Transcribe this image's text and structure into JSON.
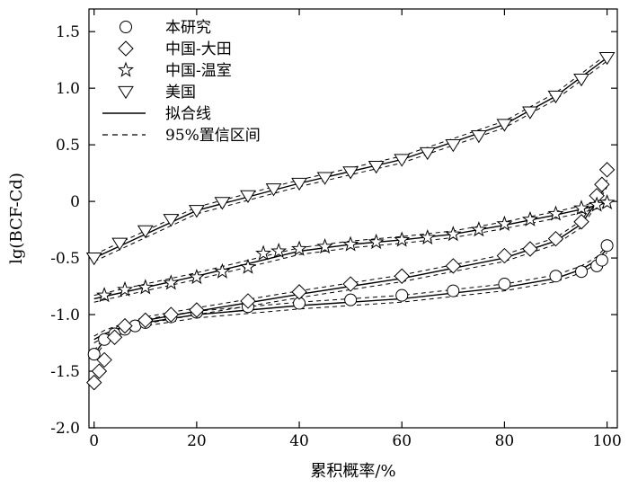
{
  "chart_data": {
    "type": "scatter",
    "xlabel": "累积概率/%",
    "ylabel": "lg(BCF-Cd)",
    "xlim": [
      -1,
      102
    ],
    "ylim": [
      -2.0,
      1.7
    ],
    "xticks": [
      0,
      20,
      40,
      60,
      80,
      100
    ],
    "yticks": [
      -2.0,
      -1.5,
      -1.0,
      -0.5,
      0,
      0.5,
      1.0,
      1.5
    ],
    "ytick_labels": [
      "-2.0",
      "-1.5",
      "-1.0",
      "-0.5",
      "0",
      "0.5",
      "1.0",
      "1.5"
    ],
    "legend_position": "top-left",
    "series": [
      {
        "name": "本研究",
        "marker": "circle",
        "x": [
          0,
          2,
          4,
          6,
          8,
          10,
          15,
          20,
          30,
          40,
          50,
          60,
          70,
          80,
          90,
          95,
          98,
          99,
          100
        ],
        "y": [
          -1.35,
          -1.22,
          -1.17,
          -1.13,
          -1.1,
          -1.07,
          -1.02,
          -0.98,
          -0.93,
          -0.9,
          -0.87,
          -0.83,
          -0.79,
          -0.73,
          -0.66,
          -0.62,
          -0.57,
          -0.52,
          -0.39
        ]
      },
      {
        "name": "中国-大田",
        "marker": "diamond",
        "x": [
          0,
          1,
          2,
          4,
          6,
          10,
          15,
          20,
          30,
          40,
          50,
          60,
          70,
          80,
          85,
          90,
          95,
          98,
          99,
          100
        ],
        "y": [
          -1.6,
          -1.5,
          -1.4,
          -1.2,
          -1.1,
          -1.05,
          -1.0,
          -0.96,
          -0.88,
          -0.8,
          -0.73,
          -0.66,
          -0.57,
          -0.48,
          -0.42,
          -0.33,
          -0.18,
          0.05,
          0.15,
          0.28
        ]
      },
      {
        "name": "中国-温室",
        "marker": "star",
        "x": [
          2,
          6,
          10,
          15,
          20,
          25,
          30,
          33,
          36,
          40,
          45,
          50,
          55,
          60,
          65,
          70,
          75,
          80,
          85,
          90,
          95,
          98,
          100
        ],
        "y": [
          -0.83,
          -0.78,
          -0.76,
          -0.72,
          -0.67,
          -0.62,
          -0.58,
          -0.46,
          -0.44,
          -0.42,
          -0.4,
          -0.38,
          -0.36,
          -0.34,
          -0.32,
          -0.29,
          -0.25,
          -0.2,
          -0.16,
          -0.11,
          -0.06,
          -0.03,
          -0.01
        ]
      },
      {
        "name": "美国",
        "marker": "triangle-down",
        "x": [
          0,
          5,
          10,
          15,
          20,
          25,
          30,
          35,
          40,
          45,
          50,
          55,
          60,
          65,
          70,
          75,
          80,
          85,
          90,
          95,
          100
        ],
        "y": [
          -0.5,
          -0.37,
          -0.26,
          -0.16,
          -0.08,
          -0.01,
          0.05,
          0.11,
          0.16,
          0.21,
          0.26,
          0.31,
          0.37,
          0.43,
          0.5,
          0.58,
          0.68,
          0.79,
          0.93,
          1.08,
          1.27
        ]
      }
    ],
    "fit_lines": [
      {
        "x": [
          0,
          2,
          5,
          10,
          20,
          40,
          60,
          80,
          90,
          95,
          98,
          100
        ],
        "y": [
          -1.22,
          -1.17,
          -1.12,
          -1.07,
          -1.0,
          -0.92,
          -0.86,
          -0.76,
          -0.68,
          -0.6,
          -0.52,
          -0.42
        ]
      },
      {
        "x": [
          0,
          2,
          5,
          10,
          20,
          40,
          60,
          80,
          90,
          95,
          98,
          100
        ],
        "y": [
          -1.35,
          -1.23,
          -1.12,
          -1.05,
          -0.97,
          -0.82,
          -0.68,
          -0.5,
          -0.35,
          -0.2,
          0.0,
          0.16
        ]
      },
      {
        "x": [
          0,
          10,
          20,
          30,
          40,
          50,
          60,
          70,
          80,
          90,
          95,
          100
        ],
        "y": [
          -0.86,
          -0.76,
          -0.66,
          -0.55,
          -0.44,
          -0.38,
          -0.34,
          -0.29,
          -0.21,
          -0.12,
          -0.07,
          -0.01
        ]
      },
      {
        "x": [
          0,
          20,
          40,
          60,
          80,
          90,
          100
        ],
        "y": [
          -0.5,
          -0.08,
          0.16,
          0.37,
          0.68,
          0.93,
          1.27
        ]
      }
    ],
    "legend": [
      {
        "label": "本研究",
        "symbol": "circle"
      },
      {
        "label": "中国-大田",
        "symbol": "diamond"
      },
      {
        "label": "中国-温室",
        "symbol": "star"
      },
      {
        "label": "美国",
        "symbol": "triangle-down"
      },
      {
        "label": "拟合线",
        "symbol": "solid-line"
      },
      {
        "label": "95%置信区间",
        "symbol": "dashed-line"
      }
    ],
    "colors": {
      "ink": "#000000",
      "background": "#ffffff"
    }
  }
}
